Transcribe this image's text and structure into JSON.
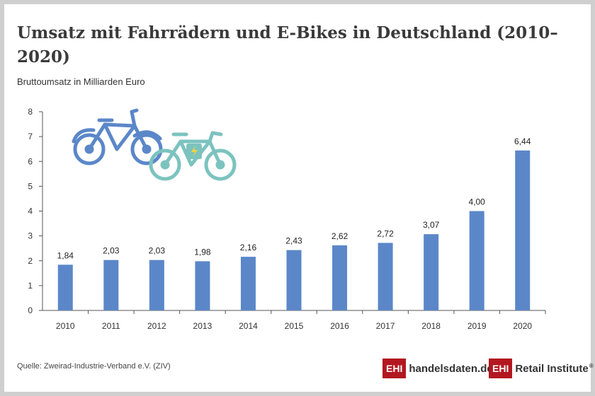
{
  "header": {
    "title": "Umsatz mit Fahrrädern und E-Bikes in Deutschland (2010–2020)",
    "subtitle": "Bruttoumsatz in Milliarden Euro"
  },
  "footer": {
    "source": "Quelle: Zweirad-Industrie-Verband e.V. (ZIV)",
    "logo1_box": "EHI",
    "logo1_text": "handelsdaten.de",
    "logo2_box": "EHI",
    "logo2_text": "Retail Institute",
    "logo2_reg": "®"
  },
  "colors": {
    "bar": "#5b87c9",
    "axis": "#555555",
    "brand_red": "#b3171f",
    "bike_blue": "#5b87c9",
    "ebike_teal": "#7cc3bf",
    "ebike_bolt": "#f2d43a"
  },
  "icons": [
    "bicycle-icon",
    "e-bike-icon"
  ],
  "chart_data": {
    "type": "bar",
    "categories": [
      "2010",
      "2011",
      "2012",
      "2013",
      "2014",
      "2015",
      "2016",
      "2017",
      "2018",
      "2019",
      "2020"
    ],
    "values": [
      1.84,
      2.03,
      2.03,
      1.98,
      2.16,
      2.43,
      2.62,
      2.72,
      3.07,
      4.0,
      6.44
    ],
    "value_labels": [
      "1,84",
      "2,03",
      "2,03",
      "1,98",
      "2,16",
      "2,43",
      "2,62",
      "2,72",
      "3,07",
      "4,00",
      "6,44"
    ],
    "title": "Umsatz mit Fahrrädern und E-Bikes in Deutschland (2010–2020)",
    "ylabel": "Bruttoumsatz in Milliarden Euro",
    "xlabel": "",
    "ylim": [
      0,
      8
    ],
    "yticks": [
      0,
      1,
      2,
      3,
      4,
      5,
      6,
      7,
      8
    ],
    "grid": false,
    "legend": "none"
  }
}
